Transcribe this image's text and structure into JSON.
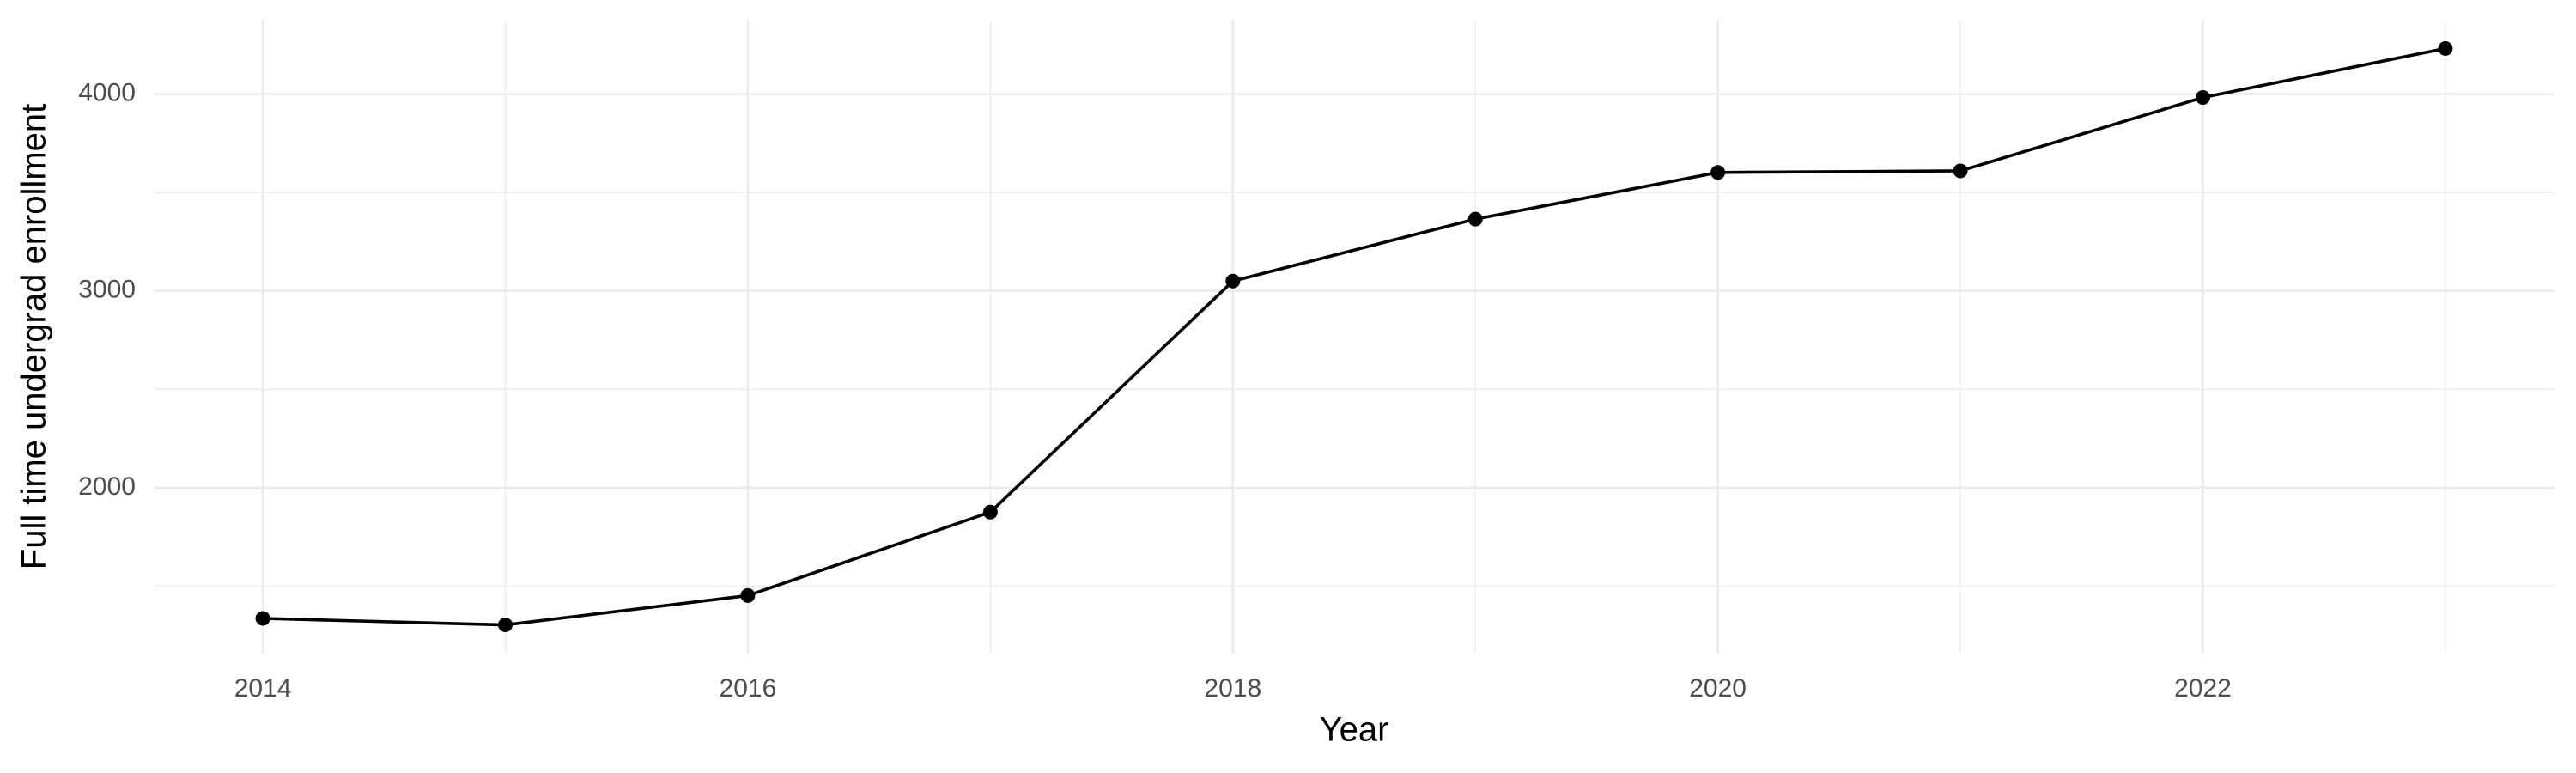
{
  "chart_data": {
    "type": "line",
    "xlabel": "Year",
    "ylabel": "Full time undergrad enrollment",
    "x": [
      2014,
      2015,
      2016,
      2017,
      2018,
      2019,
      2020,
      2021,
      2022,
      2023
    ],
    "series": [
      {
        "color": "#000000",
        "values": [
          1336,
          1303,
          1452,
          1876,
          3050,
          3365,
          3602,
          3610,
          3983,
          4232
        ]
      }
    ],
    "xlim": [
      2013.55,
      2023.45
    ],
    "ylim": [
      1157,
      4378
    ],
    "xticks": [
      2014,
      2016,
      2018,
      2020,
      2022
    ],
    "yticks": [
      2000,
      3000,
      4000
    ],
    "xminor": [
      2015,
      2017,
      2019,
      2021,
      2023
    ],
    "yminor": [
      1500,
      2500,
      3500
    ],
    "grid": true
  }
}
